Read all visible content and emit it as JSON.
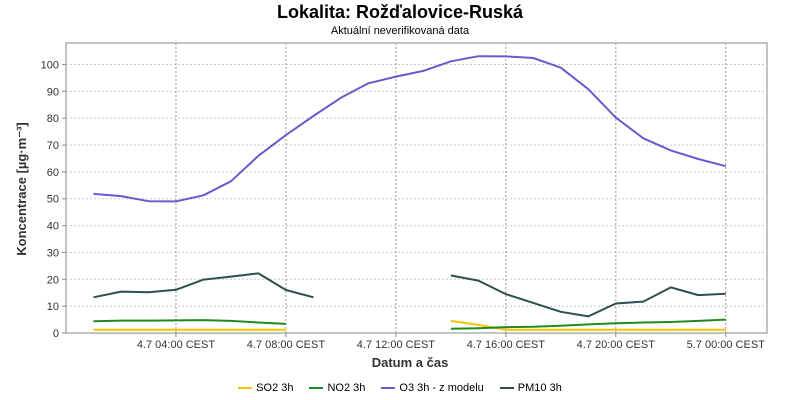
{
  "header": {
    "title": "Lokalita: Rožďalovice-Ruská",
    "subtitle": "Aktuální neverifikovaná data"
  },
  "chart_data": {
    "type": "line",
    "title": "Lokalita: Rožďalovice-Ruská",
    "subtitle": "Aktuální neverifikovaná data",
    "xlabel": "Datum a čas",
    "ylabel": "Koncentrace [µg·m⁻³]",
    "x_unit": "hour",
    "x_range": [
      "4.7 00:00 CEST",
      "5.7 01:30 CEST"
    ],
    "ylim": [
      0,
      108
    ],
    "yticks": [
      0,
      10,
      20,
      30,
      40,
      50,
      60,
      70,
      80,
      90,
      100
    ],
    "xticks": [
      "4.7 04:00 CEST",
      "4.7 08:00 CEST",
      "4.7 12:00 CEST",
      "4.7 16:00 CEST",
      "4.7 20:00 CEST",
      "5.7 00:00 CEST"
    ],
    "xticks_hours": [
      4,
      8,
      12,
      16,
      20,
      24
    ],
    "grid": true,
    "legend_position": "bottom",
    "series": [
      {
        "name": "SO2 3h",
        "color": "#f5c400",
        "x": [
          1,
          2,
          3,
          4,
          5,
          6,
          7,
          8,
          14,
          15,
          16,
          17,
          18,
          19,
          20,
          21,
          22,
          23,
          24
        ],
        "y": [
          1.2,
          1.2,
          1.2,
          1.2,
          1.2,
          1.2,
          1.2,
          1.2,
          4.5,
          3.0,
          1.2,
          1.2,
          1.2,
          1.2,
          1.2,
          1.2,
          1.2,
          1.2,
          1.2
        ]
      },
      {
        "name": "NO2 3h",
        "color": "#1f8a1f",
        "x": [
          1,
          2,
          3,
          4,
          5,
          6,
          7,
          8,
          14,
          15,
          16,
          17,
          18,
          19,
          20,
          21,
          22,
          23,
          24
        ],
        "y": [
          4.4,
          4.6,
          4.6,
          4.7,
          4.8,
          4.5,
          3.9,
          3.4,
          1.6,
          1.8,
          2.2,
          2.3,
          2.7,
          3.2,
          3.6,
          3.9,
          4.1,
          4.5,
          5.0
        ]
      },
      {
        "name": "O3 3h - z modelu",
        "color": "#6a5acd",
        "x": [
          1,
          2,
          3,
          4,
          5,
          6,
          7,
          8,
          9,
          10,
          11,
          12,
          13,
          14,
          15,
          16,
          17,
          18,
          19,
          20,
          21,
          22,
          23,
          24
        ],
        "y": [
          51.8,
          51.0,
          49.1,
          49.0,
          51.3,
          56.5,
          66.0,
          73.7,
          80.8,
          87.6,
          93.0,
          95.5,
          97.6,
          101.2,
          103.1,
          103.0,
          102.4,
          98.8,
          90.8,
          80.2,
          72.5,
          68.0,
          64.8,
          62.1
        ]
      },
      {
        "name": "PM10 3h",
        "color": "#2f4f4f",
        "x": [
          1,
          2,
          3,
          4,
          5,
          6,
          7,
          8,
          9,
          14,
          15,
          16,
          17,
          18,
          19,
          20,
          21,
          22,
          23,
          24
        ],
        "y": [
          13.3,
          15.4,
          15.2,
          16.1,
          19.9,
          21.0,
          22.2,
          16.0,
          13.3,
          21.4,
          19.5,
          14.5,
          11.2,
          7.9,
          6.2,
          11.0,
          11.7,
          17.0,
          14.1,
          14.6
        ]
      }
    ]
  }
}
